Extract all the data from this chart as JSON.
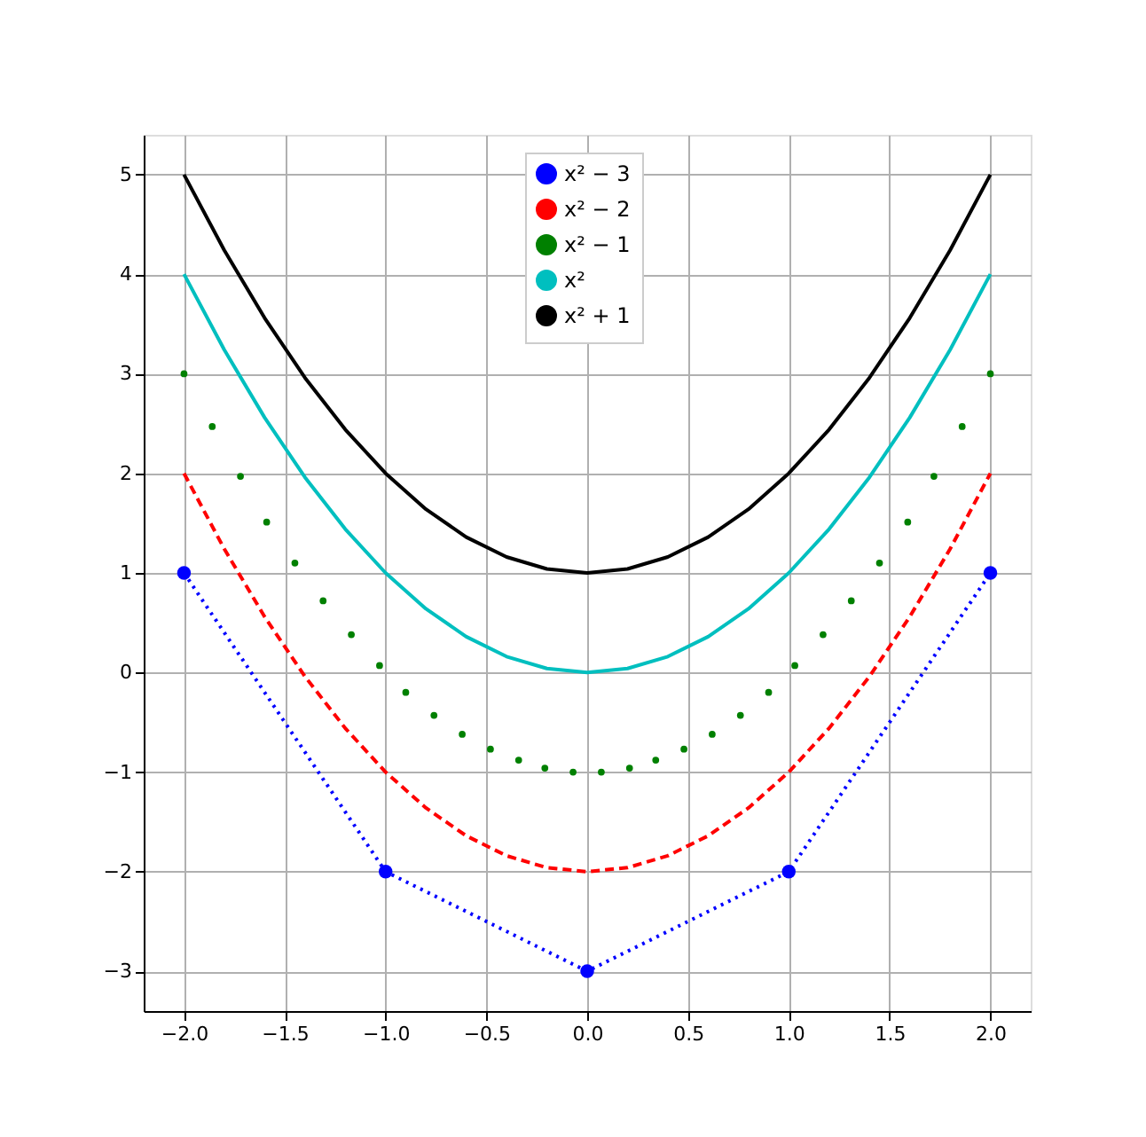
{
  "chart_data": {
    "type": "line",
    "xlim": [
      -2.2,
      2.2
    ],
    "ylim": [
      -3.4,
      5.4
    ],
    "xticks": [
      {
        "value": -2,
        "label": "−2.0"
      },
      {
        "value": -1.5,
        "label": "−1.5"
      },
      {
        "value": -1,
        "label": "−1.0"
      },
      {
        "value": -0.5,
        "label": "−0.5"
      },
      {
        "value": 0,
        "label": "0.0"
      },
      {
        "value": 0.5,
        "label": "0.5"
      },
      {
        "value": 1,
        "label": "1.0"
      },
      {
        "value": 1.5,
        "label": "1.5"
      },
      {
        "value": 2,
        "label": "2.0"
      }
    ],
    "yticks": [
      {
        "value": -3,
        "label": "−3"
      },
      {
        "value": -2,
        "label": "−2"
      },
      {
        "value": -1,
        "label": "−1"
      },
      0,
      1,
      2,
      3,
      4,
      5
    ],
    "grid": true,
    "legend": "top",
    "series": [
      {
        "name": "x² − 3",
        "color": "#0000ff",
        "line_style": "dotted",
        "marker": "circle",
        "x": [
          -2,
          -1,
          0,
          1,
          2
        ],
        "values": [
          1,
          -2,
          -3,
          -2,
          1
        ]
      },
      {
        "name": "x² − 2",
        "color": "#ff0000",
        "line_style": "dashed",
        "marker": "none",
        "x": [
          -2,
          -1.8,
          -1.6,
          -1.4,
          -1.2,
          -1,
          -0.8,
          -0.6,
          -0.4,
          -0.2,
          0,
          0.2,
          0.4,
          0.6,
          0.8,
          1,
          1.2,
          1.4,
          1.6,
          1.8,
          2
        ],
        "values": [
          2,
          1.24,
          0.56,
          -0.04,
          -0.56,
          -1,
          -1.36,
          -1.64,
          -1.84,
          -1.96,
          -2,
          -1.96,
          -1.84,
          -1.64,
          -1.36,
          -1,
          -0.56,
          -0.04,
          0.56,
          1.24,
          2
        ]
      },
      {
        "name": "x² − 1",
        "type": "scatter",
        "color": "#008000",
        "marker": "circle",
        "x": [
          -2,
          -1.86,
          -1.72,
          -1.59,
          -1.45,
          -1.31,
          -1.17,
          -1.03,
          -0.9,
          -0.76,
          -0.62,
          -0.48,
          -0.34,
          -0.21,
          -0.07,
          0.07,
          0.21,
          0.34,
          0.48,
          0.62,
          0.76,
          0.9,
          1.03,
          1.17,
          1.31,
          1.45,
          1.59,
          1.72,
          1.86,
          2
        ],
        "values": [
          3,
          2.47,
          1.97,
          1.51,
          1.1,
          0.72,
          0.38,
          0.07,
          -0.2,
          -0.43,
          -0.62,
          -0.77,
          -0.88,
          -0.96,
          -1,
          -1,
          -0.96,
          -0.88,
          -0.77,
          -0.62,
          -0.43,
          -0.2,
          0.07,
          0.38,
          0.72,
          1.1,
          1.51,
          1.97,
          2.47,
          3
        ]
      },
      {
        "name": "x²",
        "color": "#00bfbf",
        "line_style": "solid",
        "marker": "none",
        "x": [
          -2,
          -1.8,
          -1.6,
          -1.4,
          -1.2,
          -1,
          -0.8,
          -0.6,
          -0.4,
          -0.2,
          0,
          0.2,
          0.4,
          0.6,
          0.8,
          1,
          1.2,
          1.4,
          1.6,
          1.8,
          2
        ],
        "values": [
          4,
          3.24,
          2.56,
          1.96,
          1.44,
          1,
          0.64,
          0.36,
          0.16,
          0.04,
          0,
          0.04,
          0.16,
          0.36,
          0.64,
          1,
          1.44,
          1.96,
          2.56,
          3.24,
          4
        ]
      },
      {
        "name": "x² + 1",
        "color": "#000000",
        "line_style": "solid",
        "marker": "none",
        "x": [
          -2,
          -1.8,
          -1.6,
          -1.4,
          -1.2,
          -1,
          -0.8,
          -0.6,
          -0.4,
          -0.2,
          0,
          0.2,
          0.4,
          0.6,
          0.8,
          1,
          1.2,
          1.4,
          1.6,
          1.8,
          2
        ],
        "values": [
          5,
          4.24,
          3.56,
          2.96,
          2.44,
          2,
          1.64,
          1.36,
          1.16,
          1.04,
          1,
          1.04,
          1.16,
          1.36,
          1.64,
          2,
          2.44,
          2.96,
          3.56,
          4.24,
          5
        ]
      }
    ]
  }
}
